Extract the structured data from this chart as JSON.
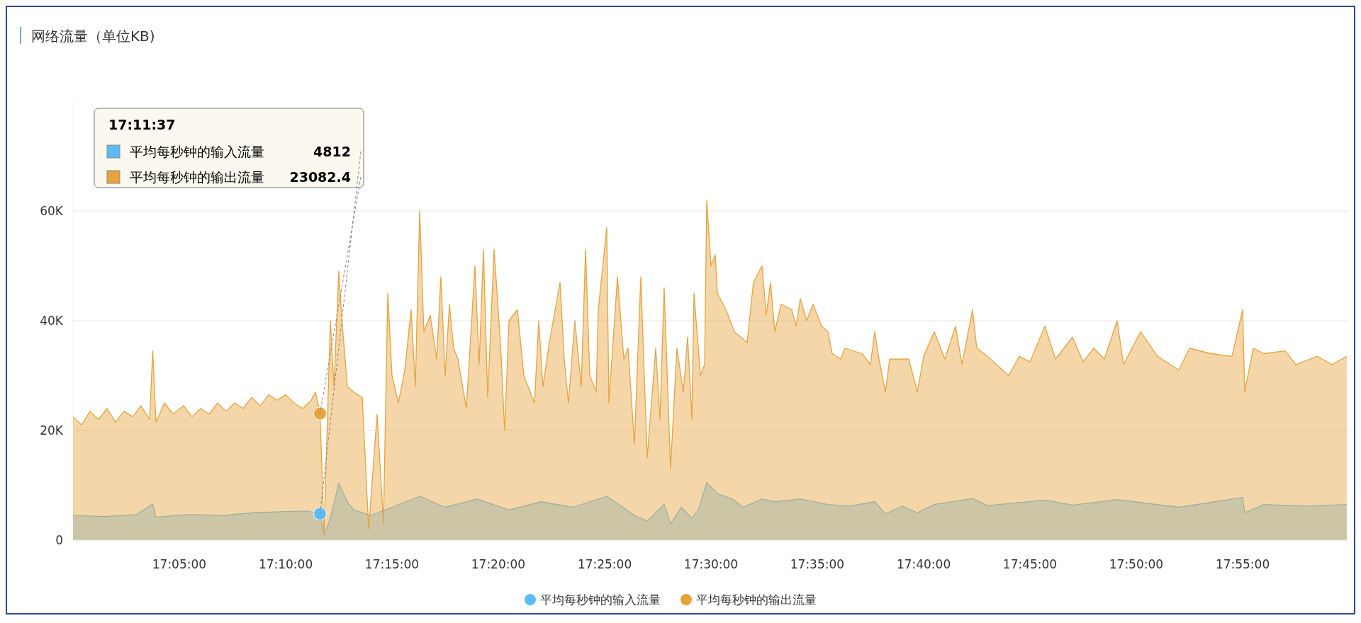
{
  "chart_data": {
    "type": "area",
    "title": "网络流量（单位KB)",
    "xlim": [
      17,
      18
    ],
    "xticks": [
      {
        "value": 17.0833,
        "label": "17:05:00"
      },
      {
        "value": 17.1667,
        "label": "17:10:00"
      },
      {
        "value": 17.25,
        "label": "17:15:00"
      },
      {
        "value": 17.3333,
        "label": "17:20:00"
      },
      {
        "value": 17.4167,
        "label": "17:25:00"
      },
      {
        "value": 17.5,
        "label": "17:30:00"
      },
      {
        "value": 17.5833,
        "label": "17:35:00"
      },
      {
        "value": 17.6667,
        "label": "17:40:00"
      },
      {
        "value": 17.75,
        "label": "17:45:00"
      },
      {
        "value": 17.8333,
        "label": "17:50:00"
      },
      {
        "value": 17.9167,
        "label": "17:55:00"
      }
    ],
    "ylim": [
      0,
      80000
    ],
    "yticks": [
      0,
      {
        "value": 20000,
        "label": "20K"
      },
      {
        "value": 40000,
        "label": "40K"
      },
      {
        "value": 60000,
        "label": "60K"
      }
    ],
    "grid": "y",
    "legend": "bottom",
    "marker": "none",
    "annotations": [
      "17:11:37",
      {
        "text": "4812",
        "x": 17.19361,
        "y": 4812
      },
      {
        "text": "23082.4",
        "x": 17.19361,
        "y": 23082.4
      }
    ],
    "series": [
      {
        "name": "平均每秒钟的输入流量",
        "color": "#5bbcf7",
        "x": [
          17,
          17.025,
          17.05,
          17.0625,
          17.065,
          17.0917,
          17.1167,
          17.1417,
          17.1667,
          17.1833,
          17.19361,
          17.1967,
          17.2017,
          17.2083,
          17.215,
          17.22,
          17.2333,
          17.25,
          17.2717,
          17.2917,
          17.3167,
          17.3417,
          17.3667,
          17.3917,
          17.4183,
          17.44,
          17.45,
          17.4633,
          17.4683,
          17.4767,
          17.485,
          17.49,
          17.4967,
          17.505,
          17.5167,
          17.525,
          17.54,
          17.55,
          17.57,
          17.5917,
          17.6083,
          17.6283,
          17.6367,
          17.65,
          17.6617,
          17.675,
          17.705,
          17.7167,
          17.7617,
          17.7833,
          17.8183,
          17.8667,
          17.9167,
          17.9183,
          17.9333,
          17.9667,
          17.9983
        ],
        "values": [
          4500,
          4300,
          4700,
          6600,
          4200,
          4700,
          4500,
          5000,
          5200,
          5300,
          4812,
          900,
          4000,
          10400,
          7000,
          5500,
          4500,
          6000,
          8000,
          6000,
          7500,
          5500,
          7000,
          6000,
          8000,
          4500,
          3500,
          6500,
          3000,
          6000,
          4000,
          5500,
          10500,
          8500,
          7500,
          6000,
          7500,
          7000,
          7500,
          6500,
          6200,
          7000,
          4800,
          6200,
          5000,
          6500,
          7600,
          6300,
          7300,
          6400,
          7400,
          6000,
          7800,
          5000,
          6500,
          6200,
          6500
        ]
      },
      {
        "name": "平均每秒钟的输出流量",
        "color": "#e8a33d",
        "x": [
          17,
          17.0067,
          17.0133,
          17.02,
          17.0267,
          17.0333,
          17.04,
          17.0467,
          17.0533,
          17.06,
          17.0625,
          17.065,
          17.0717,
          17.0783,
          17.0867,
          17.0933,
          17.1,
          17.1067,
          17.1133,
          17.12,
          17.1267,
          17.1333,
          17.14,
          17.1467,
          17.1533,
          17.16,
          17.1667,
          17.1733,
          17.18,
          17.1867,
          17.19,
          17.19361,
          17.1967,
          17.2017,
          17.2045,
          17.2083,
          17.2108,
          17.215,
          17.22,
          17.2267,
          17.2317,
          17.2383,
          17.2433,
          17.2467,
          17.25,
          17.255,
          17.26,
          17.265,
          17.2683,
          17.2717,
          17.275,
          17.28,
          17.285,
          17.2883,
          17.2917,
          17.295,
          17.2983,
          17.3017,
          17.3083,
          17.315,
          17.3183,
          17.3217,
          17.325,
          17.33,
          17.335,
          17.3383,
          17.3417,
          17.3483,
          17.3533,
          17.3617,
          17.365,
          17.3683,
          17.3733,
          17.3817,
          17.385,
          17.3883,
          17.3933,
          17.3983,
          17.4017,
          17.405,
          17.41,
          17.4117,
          17.4183,
          17.42,
          17.4267,
          17.4317,
          17.435,
          17.44,
          17.445,
          17.45,
          17.4567,
          17.46,
          17.4633,
          17.4683,
          17.4733,
          17.4783,
          17.4817,
          17.485,
          17.4867,
          17.4917,
          17.495,
          17.4967,
          17.5,
          17.5033,
          17.505,
          17.5117,
          17.5183,
          17.5283,
          17.5333,
          17.54,
          17.5433,
          17.5467,
          17.55,
          17.555,
          17.5633,
          17.5667,
          17.57,
          17.575,
          17.58,
          17.5867,
          17.5917,
          17.595,
          17.6017,
          17.605,
          17.6183,
          17.625,
          17.6283,
          17.6317,
          17.6367,
          17.64,
          17.655,
          17.6617,
          17.6667,
          17.675,
          17.6833,
          17.6917,
          17.6967,
          17.705,
          17.7083,
          17.7167,
          17.7333,
          17.7417,
          17.75,
          17.7617,
          17.77,
          17.7833,
          17.7917,
          17.8,
          17.8083,
          17.8183,
          17.8233,
          17.8367,
          17.85,
          17.8667,
          17.875,
          17.8917,
          17.9083,
          17.9167,
          17.9183,
          17.925,
          17.9333,
          17.95,
          17.9583,
          17.975,
          17.9867,
          17.9983
        ],
        "values": [
          22500,
          21000,
          23500,
          22000,
          24000,
          21500,
          23500,
          22500,
          24500,
          22000,
          34500,
          21500,
          25000,
          23000,
          24500,
          22500,
          24000,
          23000,
          25000,
          23500,
          25000,
          24000,
          26000,
          24500,
          26500,
          25500,
          26500,
          25000,
          24000,
          25500,
          27000,
          23082.4,
          1000,
          40000,
          28000,
          49000,
          40000,
          28000,
          27000,
          26000,
          2000,
          22900,
          3000,
          45000,
          30000,
          25000,
          31000,
          42000,
          28000,
          60000,
          38000,
          41000,
          33000,
          48000,
          30000,
          43000,
          35000,
          33000,
          24000,
          50000,
          32000,
          53000,
          26000,
          53000,
          36000,
          20000,
          40000,
          42000,
          30000,
          25000,
          40000,
          28000,
          36000,
          47000,
          33000,
          25000,
          40000,
          28000,
          53000,
          30000,
          27000,
          42000,
          57000,
          25000,
          48000,
          33000,
          35000,
          17500,
          48000,
          15000,
          35000,
          22000,
          46000,
          13000,
          35000,
          27000,
          37000,
          22000,
          45000,
          30000,
          32000,
          62000,
          50000,
          52000,
          45000,
          42000,
          38000,
          36000,
          47000,
          50000,
          41000,
          47000,
          38000,
          43000,
          42000,
          39000,
          44000,
          40000,
          43000,
          39000,
          38000,
          34000,
          33000,
          35000,
          34000,
          32000,
          38000,
          33000,
          27000,
          33000,
          33000,
          27000,
          33500,
          38000,
          33000,
          39000,
          32000,
          42000,
          35000,
          33500,
          30000,
          33500,
          32500,
          39000,
          33000,
          37000,
          32500,
          35000,
          33000,
          40000,
          32000,
          38000,
          33500,
          31000,
          35000,
          34000,
          33500,
          42000,
          27000,
          35000,
          34000,
          34500,
          32000,
          33500,
          32000,
          33500
        ]
      }
    ]
  }
}
